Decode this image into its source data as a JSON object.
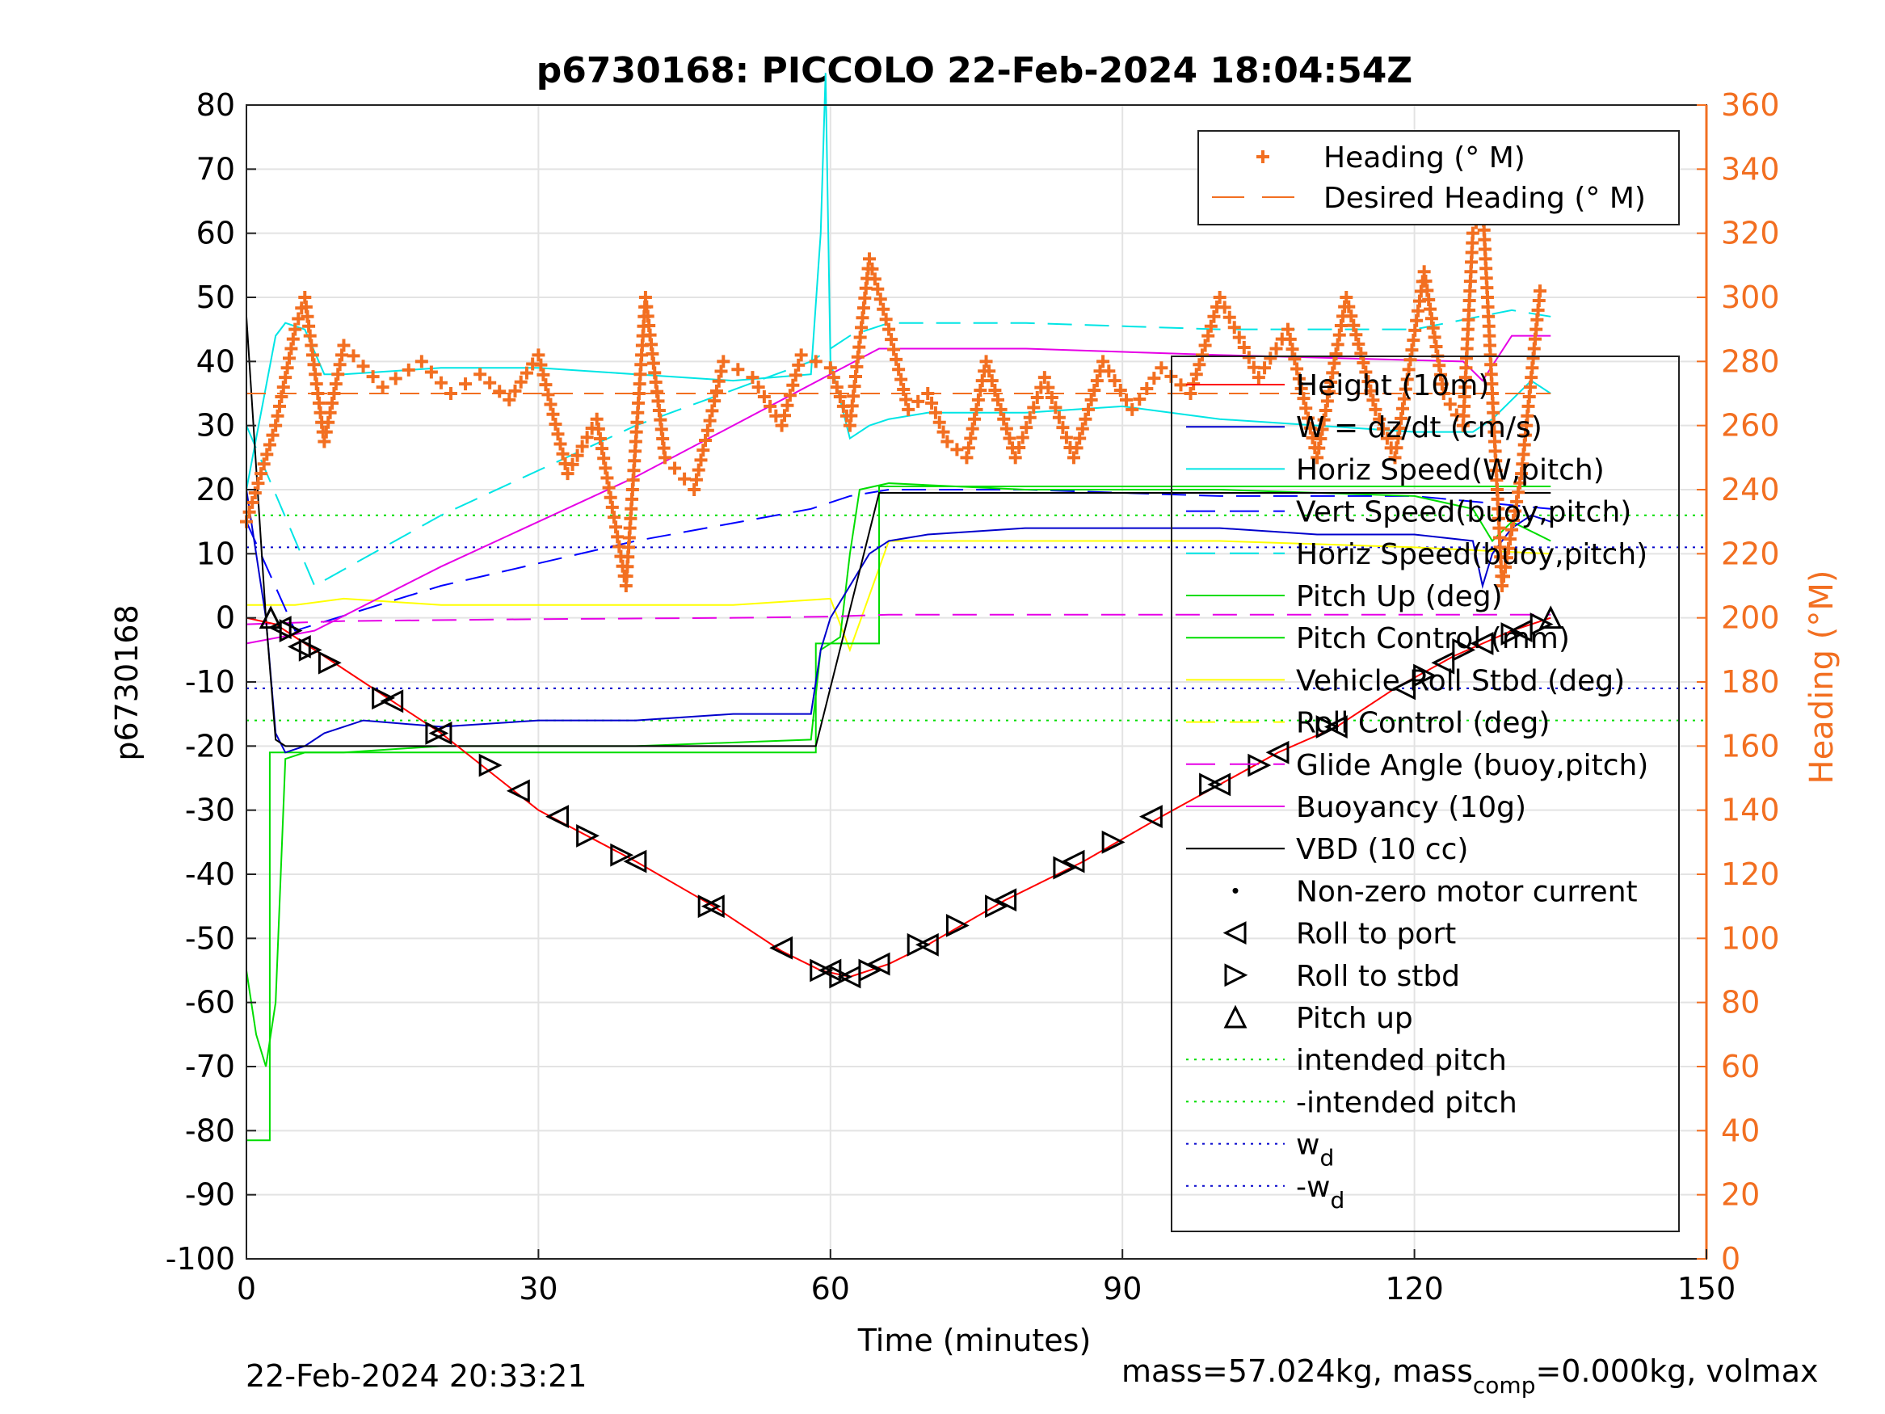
{
  "chart_data": {
    "type": "line",
    "title": "p6730168: PICCOLO 22-Feb-2024 18:04:54Z",
    "xlabel": "Time (minutes)",
    "ylabel": "p6730168",
    "y2label": "Heading (°M)",
    "xlim": [
      0,
      150
    ],
    "ylim": [
      -100,
      80
    ],
    "y2lim": [
      0,
      360
    ],
    "xticks": [
      0,
      30,
      60,
      90,
      120,
      150
    ],
    "yticks": [
      80,
      70,
      60,
      50,
      40,
      30,
      20,
      10,
      0,
      -10,
      -20,
      -30,
      -40,
      -50,
      -60,
      -70,
      -80,
      -90,
      -100
    ],
    "y2ticks": [
      360,
      340,
      320,
      300,
      280,
      260,
      240,
      220,
      200,
      180,
      160,
      140,
      120,
      100,
      80,
      60,
      40,
      20,
      0
    ],
    "grid": true,
    "colors": {
      "heading": "#f26f21",
      "height": "#ff0000",
      "w": "#0000cc",
      "horiz_w": "#00e5e5",
      "vert_buoy": "#0000ff",
      "horiz_buoy": "#00e5e5",
      "pitch_up": "#00dd00",
      "pitch_ctrl": "#00dd00",
      "roll": "#ffff00",
      "glide": "#e600e6",
      "buoy": "#e600e6",
      "vbd": "#000000"
    },
    "heading_legend": [
      "Heading (° M)",
      "Desired Heading (° M)"
    ],
    "legend": [
      "Height (10m)",
      "W = dz/dt (cm/s)",
      "Horiz Speed(W,pitch)",
      "Vert Speed(buoy,pitch)",
      "Horiz Speed(buoy,pitch)",
      "Pitch Up (deg)",
      "Pitch Control (mm)",
      "Vehicle Roll Stbd (deg)",
      "Roll Control (deg)",
      "Glide Angle (buoy,pitch)",
      "Buoyancy (10g)",
      "VBD (10 cc)",
      "Non-zero motor current",
      "Roll to port",
      "Roll to stbd",
      "Pitch up",
      "intended pitch",
      "-intended pitch",
      "w",
      "-w"
    ],
    "legend_sub": "d",
    "series": {
      "height": {
        "x": [
          0,
          3,
          10,
          20,
          30,
          40,
          48,
          55,
          59,
          62,
          66,
          70,
          78,
          86,
          94,
          100,
          106,
          112,
          118,
          124,
          130,
          134
        ],
        "y": [
          0,
          -1,
          -8,
          -18,
          -30,
          -38,
          -45,
          -52,
          -55,
          -56,
          -54,
          -51,
          -44,
          -38,
          -31,
          -26,
          -21,
          -17,
          -11,
          -6,
          -2,
          0
        ]
      },
      "w": {
        "x": [
          0,
          2,
          3,
          4,
          6,
          8,
          12,
          20,
          30,
          40,
          50,
          58,
          59,
          60,
          62,
          64,
          66,
          70,
          80,
          90,
          100,
          110,
          120,
          126,
          127,
          128,
          130,
          132,
          134
        ],
        "y": [
          20,
          0,
          -18,
          -21,
          -20,
          -18,
          -16,
          -17,
          -16,
          -16,
          -15,
          -15,
          -5,
          0,
          5,
          10,
          12,
          13,
          14,
          14,
          14,
          13,
          13,
          12,
          5,
          10,
          14,
          16,
          15
        ]
      },
      "horiz_w": {
        "x": [
          0,
          3,
          4,
          6,
          8,
          10,
          20,
          30,
          40,
          50,
          58,
          59,
          59.5,
          60,
          62,
          64,
          66,
          70,
          80,
          90,
          100,
          110,
          120,
          126,
          128,
          130,
          132,
          134
        ],
        "y": [
          20,
          44,
          46,
          45,
          38,
          38,
          39,
          39,
          38,
          37,
          38,
          60,
          85,
          40,
          28,
          30,
          31,
          32,
          32,
          33,
          31,
          30,
          29,
          29,
          31,
          34,
          37,
          35
        ]
      },
      "vert_buoy": {
        "x": [
          0,
          5,
          20,
          40,
          58,
          62,
          66,
          80,
          100,
          120,
          134
        ],
        "y": [
          15,
          -2,
          5,
          12,
          17,
          19,
          20,
          20,
          19,
          19,
          17
        ]
      },
      "horiz_buoy": {
        "x": [
          0,
          7,
          20,
          40,
          58,
          62,
          66,
          80,
          100,
          120,
          130,
          134
        ],
        "y": [
          30,
          5,
          16,
          30,
          40,
          44,
          46,
          46,
          45,
          45,
          48,
          47
        ]
      },
      "pitch_up": {
        "x": [
          0,
          1,
          2,
          3,
          4,
          6,
          10,
          20,
          40,
          58,
          59,
          60,
          61,
          62,
          63,
          66,
          80,
          100,
          120,
          126,
          128,
          130,
          134
        ],
        "y": [
          -55,
          -65,
          -70,
          -60,
          -22,
          -21,
          -21,
          -20,
          -20,
          -19,
          -5,
          -4,
          -3,
          10,
          20,
          21,
          20,
          20,
          19,
          17,
          12,
          15,
          12
        ]
      },
      "pitch_ctrl": {
        "x": [
          0,
          2.4,
          2.4,
          58.5,
          58.5,
          65,
          65,
          134
        ],
        "y": [
          -81.5,
          -81.5,
          -21,
          -21,
          -4,
          -4,
          20.5,
          20.5
        ]
      },
      "glide": {
        "x": [
          0,
          10,
          30,
          50,
          60,
          66,
          80,
          100,
          120,
          130,
          134
        ],
        "y": [
          -1,
          -0.5,
          -0.2,
          0,
          0.2,
          0.5,
          0.5,
          0.5,
          0.5,
          0.5,
          0.5
        ]
      },
      "buoy": {
        "x": [
          0,
          7,
          20,
          40,
          55,
          65,
          80,
          100,
          125,
          127,
          130,
          134
        ],
        "y": [
          -4,
          -2,
          8,
          22,
          34,
          42,
          42,
          41,
          40,
          37,
          44,
          44
        ]
      },
      "vbd": {
        "x": [
          0,
          2,
          3,
          4,
          6,
          20,
          40,
          58.5,
          65,
          66,
          134
        ],
        "y": [
          47,
          0,
          -19,
          -20,
          -20,
          -20,
          -20,
          -20,
          19.5,
          19.5,
          19.5
        ]
      },
      "roll": {
        "x": [
          0,
          5,
          10,
          20,
          30,
          40,
          50,
          60,
          62,
          66,
          80,
          100,
          120,
          134
        ],
        "y": [
          2,
          2,
          3,
          2,
          2,
          2,
          2,
          3,
          -5,
          12,
          12,
          12,
          11,
          10
        ]
      },
      "heading": {
        "x": [
          0,
          3,
          5,
          6,
          8,
          10,
          14,
          18,
          21,
          24,
          27,
          30,
          33,
          36,
          39,
          41,
          43,
          46,
          49,
          52,
          55,
          57,
          60,
          62,
          64,
          66,
          68,
          70,
          72,
          74,
          76,
          79,
          82,
          85,
          88,
          91,
          94,
          97,
          100,
          104,
          107,
          110,
          113,
          116,
          118,
          121,
          123,
          125,
          126,
          127,
          129,
          131,
          133
        ],
        "y": [
          230,
          260,
          290,
          300,
          255,
          285,
          272,
          280,
          270,
          276,
          268,
          282,
          245,
          262,
          210,
          300,
          250,
          240,
          280,
          275,
          260,
          282,
          278,
          260,
          312,
          290,
          265,
          270,
          255,
          250,
          280,
          250,
          275,
          250,
          280,
          265,
          278,
          270,
          300,
          275,
          290,
          250,
          300,
          265,
          250,
          308,
          270,
          260,
          320,
          330,
          210,
          245,
          305
        ]
      },
      "desired_heading": {
        "x": [
          0,
          134
        ],
        "y": [
          270,
          270
        ]
      }
    },
    "intended_pitch": 16,
    "wd": 11,
    "markers": {
      "roll_to_port": [
        [
          3.5,
          -1.5
        ],
        [
          5.5,
          -4.5
        ],
        [
          15,
          -13
        ],
        [
          20,
          -18
        ],
        [
          28,
          -27
        ],
        [
          32,
          -31
        ],
        [
          40,
          -38
        ],
        [
          48,
          -45
        ],
        [
          55,
          -51.5
        ],
        [
          60,
          -55
        ],
        [
          62,
          -56
        ],
        [
          65,
          -54
        ],
        [
          70,
          -51
        ],
        [
          78,
          -44
        ],
        [
          85,
          -38
        ],
        [
          93,
          -31
        ],
        [
          100,
          -26
        ],
        [
          106,
          -21
        ],
        [
          112,
          -17
        ],
        [
          119,
          -11
        ],
        [
          123,
          -7
        ],
        [
          127,
          -4
        ],
        [
          131,
          -2
        ]
      ],
      "roll_to_stbd": [
        [
          4.5,
          -2
        ],
        [
          6.5,
          -5
        ],
        [
          8.5,
          -7
        ],
        [
          14,
          -12.5
        ],
        [
          19.5,
          -18
        ],
        [
          25,
          -23
        ],
        [
          35,
          -34
        ],
        [
          38.5,
          -37
        ],
        [
          47.5,
          -45
        ],
        [
          59,
          -55
        ],
        [
          61,
          -56
        ],
        [
          64,
          -55
        ],
        [
          69,
          -51
        ],
        [
          73,
          -48
        ],
        [
          77,
          -45
        ],
        [
          84,
          -39
        ],
        [
          89,
          -35
        ],
        [
          99,
          -26
        ],
        [
          104,
          -23
        ],
        [
          111,
          -17
        ],
        [
          121,
          -9
        ],
        [
          125,
          -5
        ],
        [
          130,
          -2.5
        ],
        [
          133,
          -1
        ]
      ],
      "pitch_up": [
        [
          2.5,
          0
        ],
        [
          134,
          0
        ]
      ]
    }
  },
  "footer": {
    "timestamp": "22-Feb-2024 20:33:21",
    "mass_text": "mass=57.024kg, mass",
    "mass_sub": "comp",
    "mass_rest": "=0.000kg, volmax"
  }
}
